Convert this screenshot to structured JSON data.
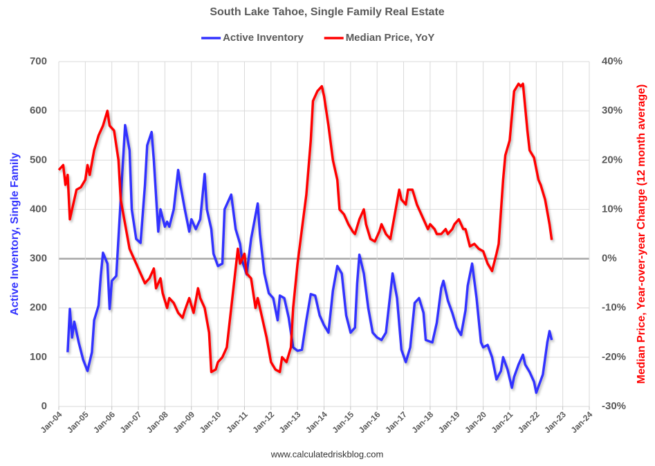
{
  "chart_data": {
    "type": "line",
    "title": "South Lake Tahoe, Single Family Real Estate",
    "ylabel": "Active Inventory, Single Family",
    "y2label": "Median Price, Year-over-year Change (12 month average)",
    "source": "www.calculatedriskblog.com",
    "grid": true,
    "legend": "top",
    "xlim": [
      "2004-01",
      "2024-01"
    ],
    "xticks": [
      {
        "value": "2004-01",
        "label": "Jan-04"
      },
      {
        "value": "2005-01",
        "label": "Jan-05"
      },
      {
        "value": "2006-01",
        "label": "Jan-06"
      },
      {
        "value": "2007-01",
        "label": "Jan-07"
      },
      {
        "value": "2008-01",
        "label": "Jan-08"
      },
      {
        "value": "2009-01",
        "label": "Jan-09"
      },
      {
        "value": "2010-01",
        "label": "Jan-10"
      },
      {
        "value": "2011-01",
        "label": "Jan-11"
      },
      {
        "value": "2012-01",
        "label": "Jan-12"
      },
      {
        "value": "2013-01",
        "label": "Jan-13"
      },
      {
        "value": "2014-01",
        "label": "Jan-14"
      },
      {
        "value": "2015-01",
        "label": "Jan-15"
      },
      {
        "value": "2016-01",
        "label": "Jan-16"
      },
      {
        "value": "2017-01",
        "label": "Jan-17"
      },
      {
        "value": "2018-01",
        "label": "Jan-18"
      },
      {
        "value": "2019-01",
        "label": "Jan-19"
      },
      {
        "value": "2020-01",
        "label": "Jan-20"
      },
      {
        "value": "2021-01",
        "label": "Jan-21"
      },
      {
        "value": "2022-01",
        "label": "Jan-22"
      },
      {
        "value": "2023-01",
        "label": "Jan-23"
      },
      {
        "value": "2024-01",
        "label": "Jan-24"
      }
    ],
    "ylim": [
      0,
      700
    ],
    "yticks": [
      0,
      100,
      200,
      300,
      400,
      500,
      600,
      700
    ],
    "y2lim": [
      -30,
      40
    ],
    "y2ticks": [
      {
        "value": -30,
        "label": "-30%"
      },
      {
        "value": -20,
        "label": "-20%"
      },
      {
        "value": -10,
        "label": "-10%"
      },
      {
        "value": 0,
        "label": "0%"
      },
      {
        "value": 10,
        "label": "10%"
      },
      {
        "value": 20,
        "label": "20%"
      },
      {
        "value": 30,
        "label": "30%"
      },
      {
        "value": 40,
        "label": "40%"
      }
    ],
    "series": [
      {
        "name": "Active Inventory",
        "color": "#3333ff",
        "axis": "y",
        "x": [
          "2004-05",
          "2004-06",
          "2004-07",
          "2004-08",
          "2004-10",
          "2004-12",
          "2005-02",
          "2005-04",
          "2005-05",
          "2005-07",
          "2005-08",
          "2005-09",
          "2005-11",
          "2005-12",
          "2006-01",
          "2006-03",
          "2006-05",
          "2006-07",
          "2006-09",
          "2006-10",
          "2006-12",
          "2007-02",
          "2007-04",
          "2007-05",
          "2007-07",
          "2007-08",
          "2007-10",
          "2007-11",
          "2008-01",
          "2008-02",
          "2008-03",
          "2008-05",
          "2008-07",
          "2008-08",
          "2008-10",
          "2008-12",
          "2009-01",
          "2009-03",
          "2009-05",
          "2009-07",
          "2009-08",
          "2009-10",
          "2009-11",
          "2010-01",
          "2010-03",
          "2010-04",
          "2010-07",
          "2010-09",
          "2010-11",
          "2010-12",
          "2011-02",
          "2011-04",
          "2011-07",
          "2011-08",
          "2011-10",
          "2011-12",
          "2012-02",
          "2012-04",
          "2012-05",
          "2012-07",
          "2012-09",
          "2012-11",
          "2013-01",
          "2013-03",
          "2013-05",
          "2013-07",
          "2013-09",
          "2013-11",
          "2014-01",
          "2014-03",
          "2014-05",
          "2014-07",
          "2014-09",
          "2014-11",
          "2015-01",
          "2015-03",
          "2015-04",
          "2015-05",
          "2015-07",
          "2015-09",
          "2015-11",
          "2016-01",
          "2016-03",
          "2016-05",
          "2016-07",
          "2016-08",
          "2016-10",
          "2016-12",
          "2017-02",
          "2017-04",
          "2017-06",
          "2017-08",
          "2017-10",
          "2017-11",
          "2018-02",
          "2018-04",
          "2018-06",
          "2018-07",
          "2018-09",
          "2018-11",
          "2019-01",
          "2019-03",
          "2019-05",
          "2019-06",
          "2019-08",
          "2019-10",
          "2019-12",
          "2020-01",
          "2020-03",
          "2020-05",
          "2020-07",
          "2020-09",
          "2020-10",
          "2020-12",
          "2021-02",
          "2021-03",
          "2021-05",
          "2021-07",
          "2021-08",
          "2021-10",
          "2021-12",
          "2022-01",
          "2022-04",
          "2022-06",
          "2022-07",
          "2022-08"
        ],
        "values": [
          110,
          198,
          140,
          172,
          130,
          95,
          72,
          110,
          175,
          205,
          265,
          312,
          290,
          198,
          255,
          265,
          420,
          571,
          520,
          400,
          340,
          332,
          450,
          530,
          557,
          500,
          355,
          400,
          365,
          375,
          365,
          400,
          480,
          450,
          400,
          355,
          380,
          360,
          380,
          472,
          400,
          360,
          310,
          285,
          290,
          400,
          430,
          360,
          330,
          295,
          268,
          340,
          412,
          350,
          270,
          230,
          220,
          175,
          225,
          220,
          180,
          120,
          113,
          115,
          175,
          228,
          225,
          185,
          165,
          150,
          235,
          285,
          270,
          185,
          150,
          160,
          250,
          308,
          270,
          200,
          150,
          140,
          135,
          150,
          230,
          270,
          220,
          115,
          90,
          120,
          210,
          220,
          190,
          135,
          130,
          170,
          240,
          255,
          215,
          190,
          160,
          145,
          195,
          245,
          290,
          220,
          130,
          120,
          125,
          100,
          55,
          72,
          100,
          75,
          38,
          60,
          85,
          105,
          85,
          70,
          50,
          28,
          65,
          130,
          153,
          135
        ]
      },
      {
        "name": "Median Price, YoY",
        "color": "#ff0000",
        "axis": "y2",
        "x": [
          "2004-01",
          "2004-03",
          "2004-04",
          "2004-05",
          "2004-06",
          "2004-08",
          "2004-09",
          "2004-11",
          "2005-01",
          "2005-02",
          "2005-03",
          "2005-05",
          "2005-07",
          "2005-08",
          "2005-09",
          "2005-11",
          "2005-12",
          "2006-02",
          "2006-04",
          "2006-05",
          "2006-07",
          "2006-09",
          "2006-11",
          "2006-12",
          "2007-02",
          "2007-04",
          "2007-06",
          "2007-08",
          "2007-09",
          "2007-11",
          "2007-12",
          "2008-02",
          "2008-03",
          "2008-05",
          "2008-07",
          "2008-09",
          "2008-10",
          "2008-12",
          "2009-02",
          "2009-04",
          "2009-05",
          "2009-07",
          "2009-09",
          "2009-10",
          "2009-12",
          "2010-01",
          "2010-03",
          "2010-05",
          "2010-07",
          "2010-08",
          "2010-10",
          "2010-11",
          "2011-01",
          "2011-02",
          "2011-04",
          "2011-06",
          "2011-07",
          "2011-09",
          "2011-11",
          "2012-01",
          "2012-03",
          "2012-05",
          "2012-06",
          "2012-08",
          "2012-10",
          "2012-11",
          "2013-01",
          "2013-03",
          "2013-05",
          "2013-07",
          "2013-08",
          "2013-10",
          "2013-12",
          "2014-01",
          "2014-03",
          "2014-05",
          "2014-07",
          "2014-08",
          "2014-10",
          "2014-12",
          "2015-02",
          "2015-03",
          "2015-05",
          "2015-07",
          "2015-08",
          "2015-10",
          "2015-12",
          "2016-02",
          "2016-03",
          "2016-05",
          "2016-07",
          "2016-09",
          "2016-11",
          "2016-12",
          "2017-02",
          "2017-03",
          "2017-05",
          "2017-07",
          "2017-09",
          "2017-12",
          "2018-01",
          "2018-03",
          "2018-04",
          "2018-06",
          "2018-08",
          "2018-09",
          "2018-11",
          "2018-12",
          "2019-02",
          "2019-04",
          "2019-05",
          "2019-07",
          "2019-09",
          "2019-11",
          "2020-01",
          "2020-03",
          "2020-05",
          "2020-07",
          "2020-08",
          "2020-10",
          "2020-11",
          "2021-01",
          "2021-03",
          "2021-05",
          "2021-06",
          "2021-07",
          "2021-09",
          "2021-10",
          "2021-12",
          "2022-02",
          "2022-03",
          "2022-05",
          "2022-07",
          "2022-08"
        ],
        "values": [
          18,
          19,
          15,
          17,
          8,
          12,
          14,
          14.5,
          16,
          19,
          17,
          22,
          25,
          26,
          27,
          30,
          27,
          26,
          20,
          12,
          7,
          2,
          0,
          -1,
          -3,
          -5,
          -4,
          -2,
          -6,
          -4,
          -7,
          -10,
          -8,
          -9,
          -11,
          -12,
          -10.5,
          -8,
          -11,
          -6,
          -8,
          -10,
          -15,
          -23,
          -22.5,
          -21,
          -20,
          -18,
          -10,
          -6,
          2,
          -1,
          1,
          -3,
          -4,
          -10,
          -8,
          -12,
          -16,
          -21,
          -22.5,
          -23,
          -20,
          -21,
          -18,
          -10,
          -1,
          6,
          13,
          24,
          32,
          34,
          35,
          33,
          27,
          20,
          16,
          10,
          9,
          7,
          5.5,
          5,
          8,
          10,
          7,
          4,
          3.5,
          5.5,
          7,
          5,
          4,
          9,
          14,
          12,
          11,
          14,
          14,
          11,
          9,
          6,
          7,
          6,
          5,
          5,
          6,
          5,
          6,
          7,
          8,
          6,
          6,
          2.5,
          3,
          2,
          1.5,
          -1,
          -2.5,
          1,
          3,
          16,
          21,
          24,
          34,
          35.5,
          35,
          35.5,
          26,
          22,
          20.5,
          16,
          15,
          12,
          7,
          3.8
        ]
      }
    ]
  }
}
